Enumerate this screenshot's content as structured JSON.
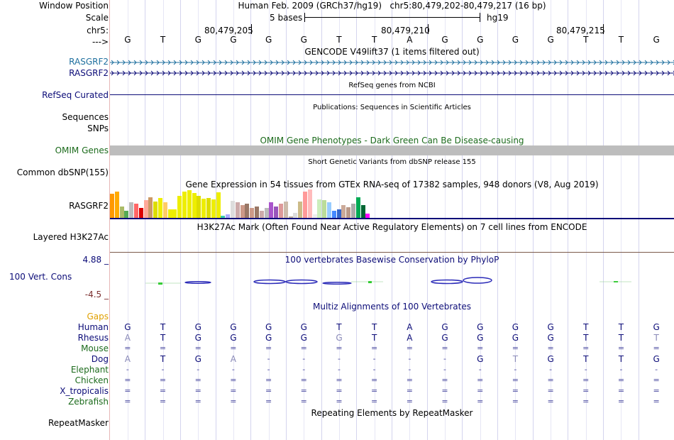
{
  "header": {
    "window_position_label": "Window Position",
    "scale_label": "Scale",
    "chr_label": "chr5:",
    "arrow_label": "--->",
    "position_text": "Human Feb. 2009 (GRCh37/hg19)   chr5:80,479,202-80,479,217 (16 bp)",
    "scale_text": "5 bases",
    "assembly": "hg19",
    "ruler_ticks": [
      "80,479,205",
      "80,479,210",
      "80,479,215"
    ]
  },
  "sequence": [
    "G",
    "T",
    "G",
    "G",
    "G",
    "G",
    "T",
    "T",
    "A",
    "G",
    "G",
    "G",
    "G",
    "T",
    "T",
    "G"
  ],
  "tracks": {
    "gencode": {
      "title": "GENCODE V49lift37 (1 items filtered out)",
      "items": [
        "RASGRF2",
        "RASGRF2"
      ]
    },
    "refseq": {
      "title": "RefSeq genes from NCBI",
      "label": "RefSeq Curated"
    },
    "publications": {
      "title": "Publications: Sequences in Scientific Articles",
      "labels": [
        "Sequences",
        "SNPs"
      ]
    },
    "omim": {
      "title": "OMIM Gene Phenotypes - Dark Green Can Be Disease-causing",
      "label": "OMIM Genes"
    },
    "dbsnp": {
      "title": "Short Genetic Variants from dbSNP release 155",
      "label": "Common dbSNP(155)"
    },
    "gtex": {
      "title": "Gene Expression in 54 tissues from GTEx RNA-seq of 17382 samples, 948 donors (V8, Aug 2019)",
      "label": "RASGRF2",
      "values": [
        0.85,
        0.92,
        0.4,
        0.25,
        0.55,
        0.5,
        0.35,
        0.62,
        0.72,
        0.58,
        0.7,
        0.55,
        0.3,
        0.3,
        0.78,
        0.92,
        0.98,
        0.88,
        0.78,
        0.68,
        0.7,
        0.65,
        0.9,
        0.08,
        0.12,
        0.6,
        0.55,
        0.45,
        0.5,
        0.35,
        0.4,
        0.25,
        0.35,
        0.55,
        0.4,
        0.5,
        0.58,
        0.05,
        0.18,
        0.58,
        0.93,
        1.0,
        0.12,
        0.65,
        0.62,
        0.55,
        0.25,
        0.3,
        0.45,
        0.38,
        0.5,
        0.72,
        0.45,
        0.15
      ],
      "colors": [
        "#ff9900",
        "#ffaa00",
        "#aabb66",
        "#55aa55",
        "#bbbbbb",
        "#ff6666",
        "#dd0000",
        "#ffaa99",
        "#cc9966",
        "#dddd00",
        "#eeee00",
        "#ffcc66",
        "#eeee00",
        "#eeee00",
        "#eeee00",
        "#eeee00",
        "#eeee00",
        "#eeee00",
        "#dddd00",
        "#eeee00",
        "#dddd00",
        "#eeee00",
        "#eeee00",
        "#33ccaa",
        "#aaaaff",
        "#dddddd",
        "#ccaaaa",
        "#cc9988",
        "#997766",
        "#cc9988",
        "#997766",
        "#ccaaaa",
        "#bbbbbb",
        "#aa55cc",
        "#9955bb",
        "#dd9999",
        "#ccbbaa",
        "#bbaa99",
        "#dddddd",
        "#ccbb88",
        "#ff9999",
        "#ffbbbb",
        "#eeeeee",
        "#cceebb",
        "#bbdd99",
        "#99ccff",
        "#4488ff",
        "#3366cc",
        "#ccaa99",
        "#bb9988",
        "#aaaaaa",
        "#00aa55",
        "#006633",
        "#ff00ff"
      ]
    },
    "h3k27ac": {
      "title": "H3K27Ac Mark (Often Found Near Active Regulatory Elements) on 7 cell lines from ENCODE",
      "label": "Layered H3K27Ac"
    },
    "conservation": {
      "title": "100 vertebrates Basewise Conservation by PhyloP",
      "label": "100 Vert. Cons",
      "max": "4.88 _",
      "min": "-4.5 _"
    },
    "gaps": {
      "label": "Gaps"
    },
    "multiz": {
      "title": "Multiz Alignments of 100 Vertebrates",
      "species": [
        {
          "name": "Human",
          "cls": "navy",
          "bases": [
            "G",
            "T",
            "G",
            "G",
            "G",
            "G",
            "T",
            "T",
            "A",
            "G",
            "G",
            "G",
            "G",
            "T",
            "T",
            "G"
          ]
        },
        {
          "name": "Rhesus",
          "cls": "navy",
          "bases": [
            "A",
            "T",
            "G",
            "G",
            "G",
            "G",
            "G",
            "T",
            "A",
            "G",
            "G",
            "G",
            "G",
            "T",
            "T",
            "T"
          ]
        },
        {
          "name": "Mouse",
          "cls": "green",
          "bases": [
            "=",
            "=",
            "=",
            "=",
            "=",
            "=",
            "=",
            "=",
            "=",
            "=",
            "=",
            "=",
            "=",
            "=",
            "=",
            "="
          ]
        },
        {
          "name": "Dog",
          "cls": "navy",
          "bases": [
            "A",
            "T",
            "G",
            "A",
            "-",
            "-",
            "-",
            "-",
            "-",
            "-",
            "G",
            "T",
            "G",
            "T",
            "T",
            "G"
          ]
        },
        {
          "name": "Elephant",
          "cls": "green",
          "bases": [
            "-",
            "-",
            "-",
            "-",
            "-",
            "-",
            "-",
            "-",
            "-",
            "-",
            "-",
            "-",
            "-",
            "-",
            "-",
            "-"
          ]
        },
        {
          "name": "Chicken",
          "cls": "green",
          "bases": [
            "=",
            "=",
            "=",
            "=",
            "=",
            "=",
            "=",
            "=",
            "=",
            "=",
            "=",
            "=",
            "=",
            "=",
            "=",
            "="
          ]
        },
        {
          "name": "X_tropicalis",
          "cls": "navy",
          "bases": [
            "=",
            "=",
            "=",
            "=",
            "=",
            "=",
            "=",
            "=",
            "=",
            "=",
            "=",
            "=",
            "=",
            "=",
            "=",
            "="
          ]
        },
        {
          "name": "Zebrafish",
          "cls": "green",
          "bases": [
            "=",
            "=",
            "=",
            "=",
            "=",
            "=",
            "=",
            "=",
            "=",
            "=",
            "=",
            "=",
            "=",
            "=",
            "=",
            "="
          ]
        }
      ]
    },
    "repeatmasker": {
      "title": "Repeating Elements by RepeatMasker",
      "label": "RepeatMasker"
    }
  }
}
